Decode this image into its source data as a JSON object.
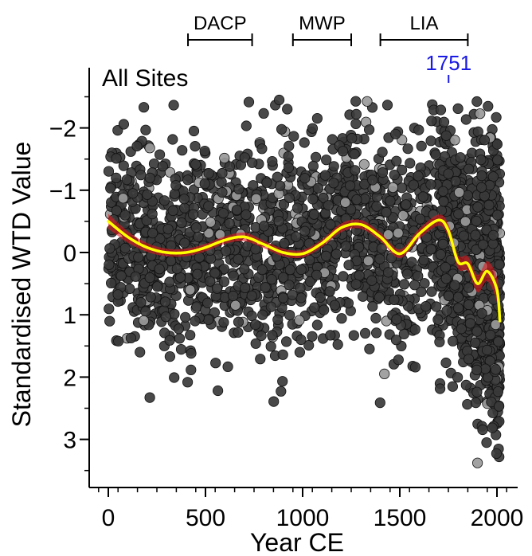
{
  "chart_data": {
    "type": "scatter",
    "title": "All Sites",
    "xlabel": "Year CE",
    "ylabel": "Standardised WTD Value",
    "xlim": [
      -100,
      2100
    ],
    "ylim": [
      3.75,
      -2.65
    ],
    "y_axis_inverted": true,
    "xticks": [
      0,
      500,
      1000,
      1500,
      2000
    ],
    "xtick_labels": [
      "0",
      "500",
      "1000",
      "1500",
      "2000"
    ],
    "yticks": [
      -2,
      -1,
      0,
      1,
      2,
      3
    ],
    "ytick_labels": [
      "−2",
      "−1",
      "0",
      "1",
      "2",
      "3"
    ],
    "periods": [
      {
        "label": "DACP",
        "start": 410,
        "end": 740
      },
      {
        "label": "MWP",
        "start": 950,
        "end": 1250
      },
      {
        "label": "LIA",
        "start": 1400,
        "end": 1850
      }
    ],
    "annotation": {
      "label": "1751",
      "x": 1751,
      "color": "#1a1ae6"
    },
    "colors": {
      "points": "#3a3a3a",
      "points_light": "#9a9a9a",
      "smooth_line": "#ffff00",
      "confidence_band": "#e0191e"
    },
    "trend": {
      "x": [
        0,
        100,
        200,
        300,
        400,
        500,
        600,
        700,
        800,
        900,
        1000,
        1100,
        1200,
        1300,
        1400,
        1500,
        1600,
        1700,
        1750,
        1800,
        1850,
        1900,
        1950,
        2000,
        2015
      ],
      "y": [
        -0.5,
        -0.25,
        -0.08,
        0.0,
        0.0,
        -0.08,
        -0.2,
        -0.25,
        -0.13,
        0.0,
        0.02,
        -0.15,
        -0.4,
        -0.45,
        -0.25,
        0.02,
        -0.3,
        -0.52,
        -0.35,
        0.15,
        0.18,
        0.5,
        0.3,
        0.6,
        1.1
      ],
      "band_halfwidth": [
        0.12,
        0.09,
        0.07,
        0.06,
        0.06,
        0.06,
        0.06,
        0.07,
        0.06,
        0.06,
        0.06,
        0.06,
        0.07,
        0.07,
        0.07,
        0.07,
        0.08,
        0.09,
        0.1,
        0.11,
        0.12,
        0.14,
        0.16,
        0.2,
        0.25
      ]
    },
    "point_count": 2600
  }
}
